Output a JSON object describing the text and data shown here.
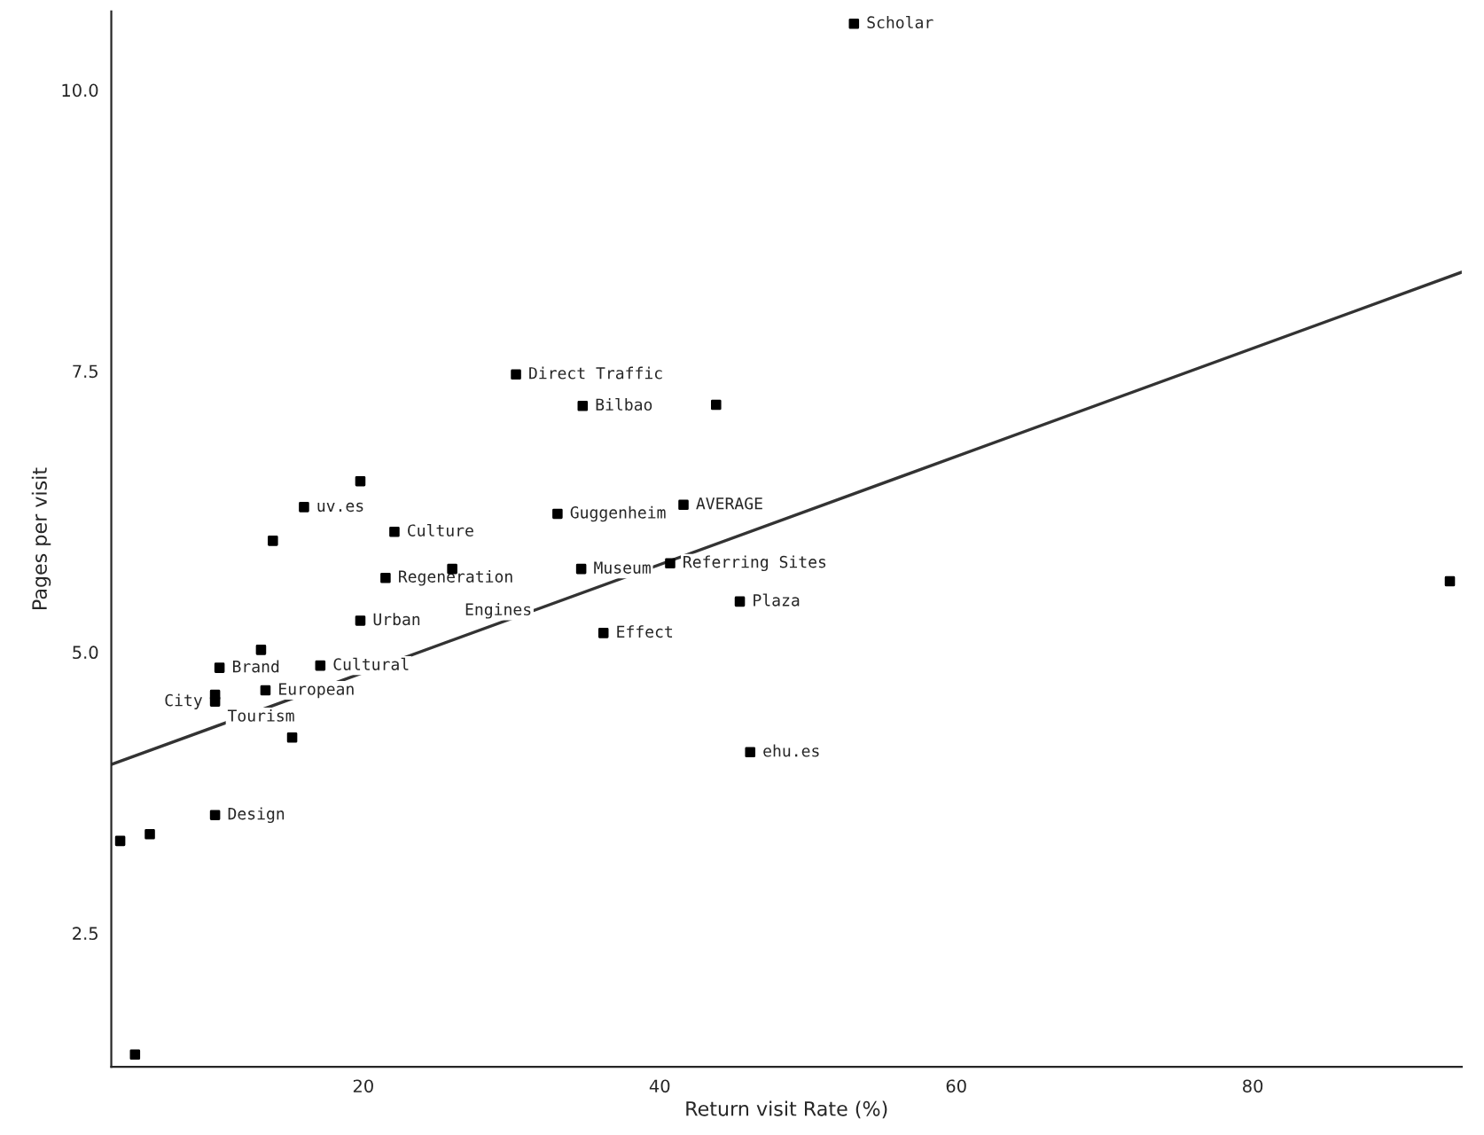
{
  "chart_data": {
    "type": "scatter",
    "xlabel": "Return visit Rate (%)",
    "ylabel": "Pages per visit",
    "xlim": [
      3.0,
      94.1
    ],
    "ylim": [
      1.31,
      10.7
    ],
    "xticks": [
      20,
      40,
      60,
      80
    ],
    "yticks": [
      {
        "value": 2.5,
        "label": "2.5"
      },
      {
        "value": 5.0,
        "label": "5.0"
      },
      {
        "value": 7.5,
        "label": "7.5"
      },
      {
        "value": 10.0,
        "label": "10.0"
      }
    ],
    "grid": false,
    "legend": false,
    "series": [
      {
        "marker": "square",
        "color": "#000000",
        "x": [
          53.1,
          30.3,
          34.8,
          43.8,
          19.8,
          16.0,
          22.1,
          13.9,
          33.1,
          41.6,
          21.5,
          26.0,
          34.7,
          40.7,
          45.4,
          93.3,
          19.8,
          13.1,
          36.2,
          17.1,
          10.3,
          13.4,
          10.0,
          10.0,
          15.2,
          46.1,
          10.0,
          5.6,
          3.6,
          4.6
        ],
        "values": [
          10.59,
          7.47,
          7.19,
          7.2,
          6.52,
          6.29,
          6.07,
          5.99,
          6.23,
          6.31,
          5.66,
          5.74,
          5.74,
          5.79,
          5.45,
          5.63,
          5.28,
          5.02,
          5.17,
          4.88,
          4.86,
          4.66,
          4.62,
          4.56,
          4.24,
          4.11,
          3.55,
          3.38,
          3.32,
          1.42
        ]
      },
      {
        "type": "line",
        "color": "#333333",
        "x": [
          3.0,
          94.1
        ],
        "values": [
          4.0,
          8.38
        ]
      }
    ],
    "annotations": [
      {
        "text": "Scholar",
        "x": 53.1,
        "y": 10.59
      },
      {
        "text": "Direct Traffic",
        "x": 30.3,
        "y": 7.47
      },
      {
        "text": "Bilbao",
        "x": 34.8,
        "y": 7.19
      },
      {
        "text": "Culture",
        "x": 22.1,
        "y": 6.07
      },
      {
        "text": "uv.es",
        "x": 16.0,
        "y": 6.29
      },
      {
        "text": "Guggenheim",
        "x": 33.1,
        "y": 6.23
      },
      {
        "text": "AVERAGE",
        "x": 41.6,
        "y": 6.31
      },
      {
        "text": "Regeneration",
        "x": 21.5,
        "y": 5.66
      },
      {
        "text": "Engines",
        "x": 26.0,
        "y": 5.74
      },
      {
        "text": "Museum",
        "x": 34.7,
        "y": 5.74
      },
      {
        "text": "Referring Sites",
        "x": 40.7,
        "y": 5.79
      },
      {
        "text": "Plaza",
        "x": 45.4,
        "y": 5.45
      },
      {
        "text": "Urban",
        "x": 19.8,
        "y": 5.28
      },
      {
        "text": "Effect",
        "x": 36.2,
        "y": 5.17
      },
      {
        "text": "Cultural",
        "x": 17.1,
        "y": 4.88
      },
      {
        "text": "Brand",
        "x": 10.3,
        "y": 4.86
      },
      {
        "text": "European",
        "x": 13.4,
        "y": 4.66
      },
      {
        "text": "Tourism",
        "x": 10.0,
        "y": 4.62
      },
      {
        "text": "City",
        "x": 10.0,
        "y": 4.56
      },
      {
        "text": "ehu.es",
        "x": 46.1,
        "y": 4.11
      },
      {
        "text": "Design",
        "x": 10.0,
        "y": 3.55
      }
    ]
  }
}
